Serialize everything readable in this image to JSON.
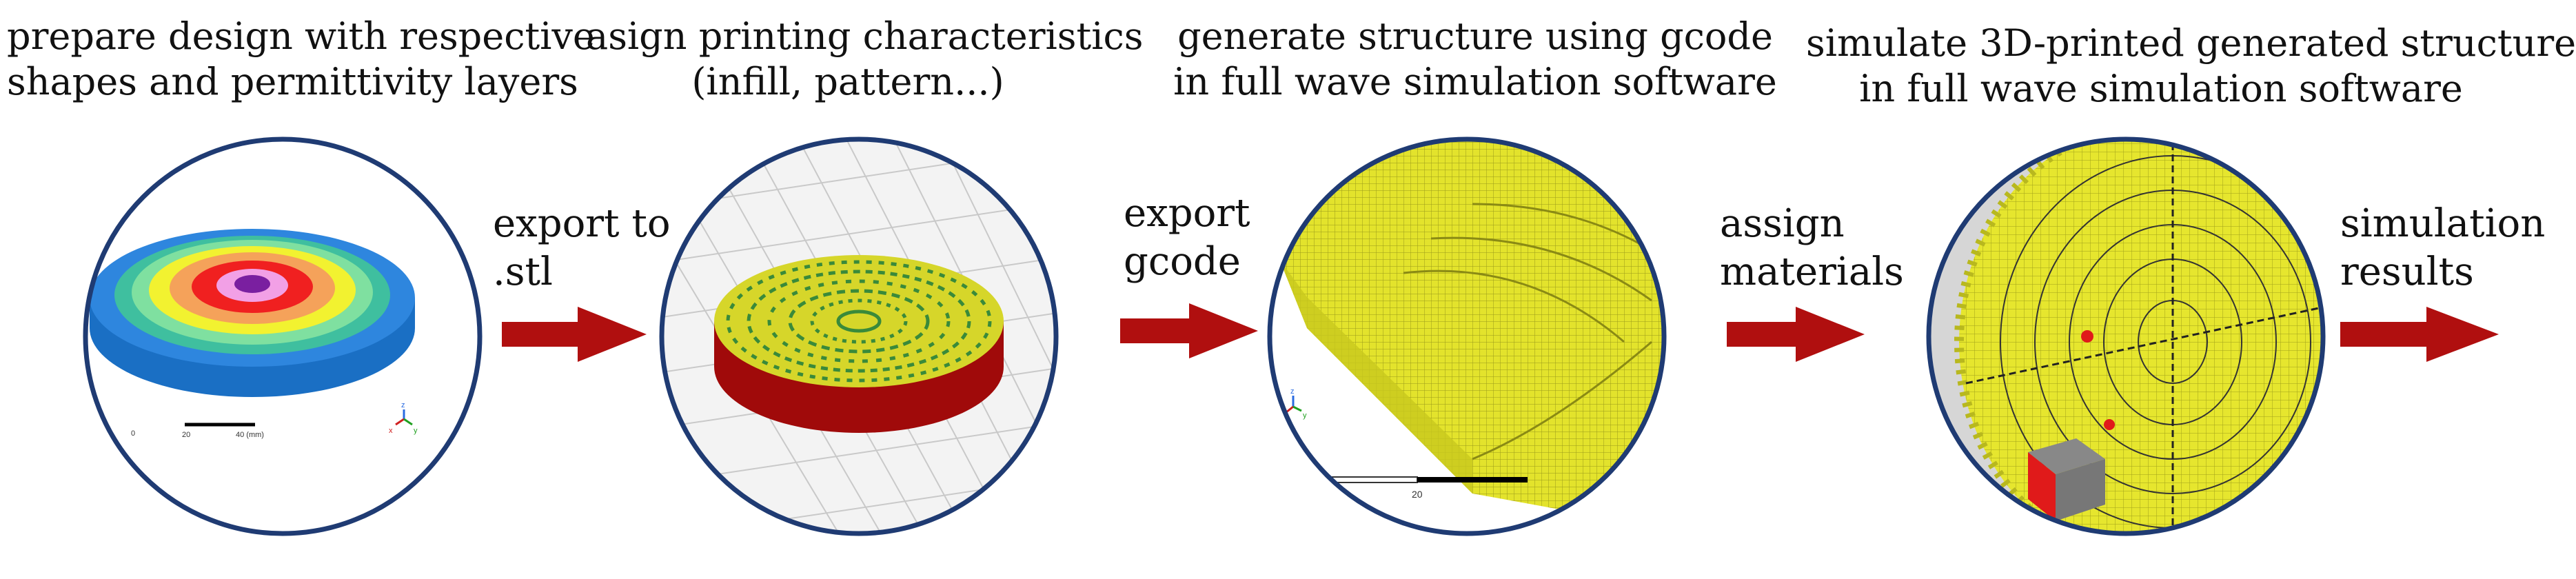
{
  "steps": [
    {
      "caption_line1": "prepare design with respective",
      "caption_line2": "shapes and permittivity layers"
    },
    {
      "caption_line1": "asign printing characteristics",
      "caption_line2": "(infill, pattern...)"
    },
    {
      "caption_line1": "generate structure using gcode",
      "caption_line2": "in full wave simulation software"
    },
    {
      "caption_line1": "simulate 3D-printed generated structure",
      "caption_line2": "in full wave simulation software"
    }
  ],
  "arrows": [
    {
      "line1": "export to",
      "line2": ".stl"
    },
    {
      "line1": "export",
      "line2": "gcode"
    },
    {
      "line1": "assign",
      "line2": "materials"
    },
    {
      "line1": "simulation",
      "line2": "results"
    }
  ],
  "panel1": {
    "scale_start": "0",
    "scale_mid": "20",
    "scale_end": "40 (mm)",
    "axis_y": "y",
    "axis_z": "z",
    "axis_x": "x"
  },
  "panel3": {
    "scale_value": "20",
    "axis_y": "y",
    "axis_z": "z",
    "axis_x": "x"
  },
  "colors": {
    "arrow_red": "#b00f0f",
    "circle_border": "#1f3b73",
    "yellow_material": "#e6e62e",
    "base_red": "#a00a0a",
    "blue_base": "#2e86de"
  }
}
